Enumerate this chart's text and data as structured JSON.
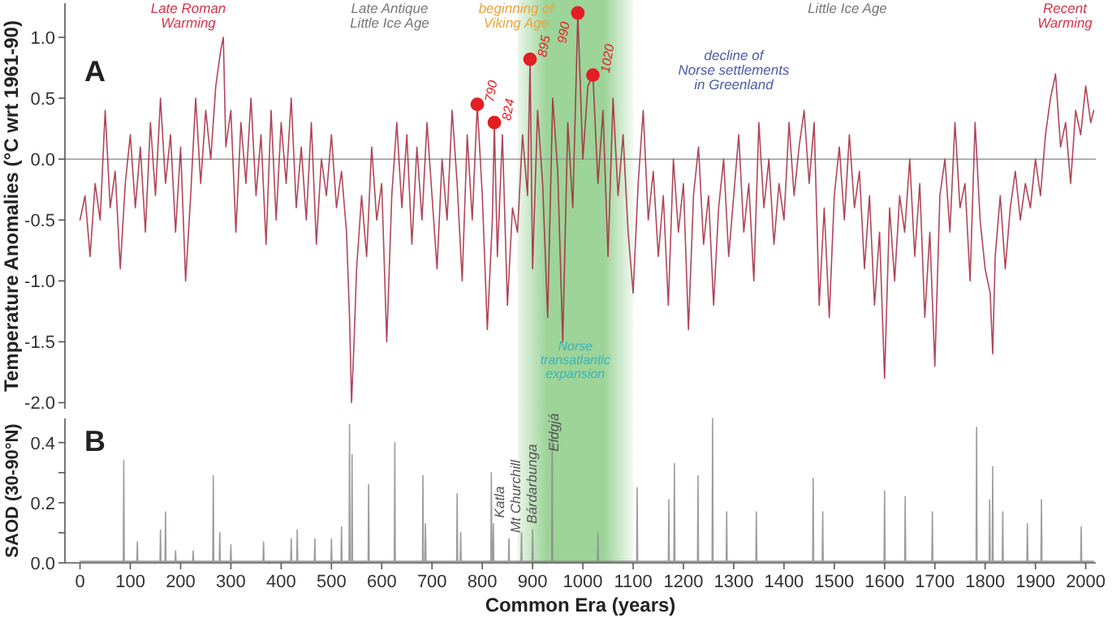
{
  "chart_data": [
    {
      "type": "line",
      "ylabel": "Temperature Anomalies (°C wrt 1961-90)",
      "xlim": [
        -30,
        2020
      ],
      "ylim": [
        -2.05,
        1.28
      ],
      "tick_labels": "y",
      "grid": false,
      "marker": "none",
      "line_style": "solid",
      "yticks": [
        {
          "value": 1,
          "label": "1.0"
        },
        0.5,
        {
          "value": 0,
          "label": "0.0"
        },
        -0.5,
        {
          "value": -1,
          "label": "-1.0"
        },
        -1.5,
        {
          "value": -2,
          "label": "-2.0"
        }
      ],
      "ref_lines": [
        {
          "axis": "y",
          "value": 0,
          "color": "#999999"
        }
      ],
      "bands": [
        {
          "axis": "x",
          "from": 870,
          "to": 1100,
          "label": "Norse\ntransatlantic\nexpansion",
          "color": "#7cc576"
        }
      ],
      "annotations": [
        "A",
        "Late Roman\nWarming",
        "Late Antique\nLittle Ice Age",
        "beginning of\nViking Age",
        "Little Ice Age",
        "Recent\nWarming",
        "decline of\nNorse settlements\nin Greenland",
        {
          "text": "790",
          "x": 790,
          "y": 0.45
        },
        {
          "text": "824",
          "x": 824,
          "y": 0.3
        },
        {
          "text": "895",
          "x": 895,
          "y": 0.82
        },
        {
          "text": "990",
          "x": 990,
          "y": 1.2
        },
        {
          "text": "1020",
          "x": 1020,
          "y": 0.69
        }
      ],
      "series": [
        {
          "color": "#a3263b",
          "x": [
            0,
            10,
            20,
            30,
            40,
            50,
            60,
            70,
            80,
            90,
            100,
            110,
            120,
            130,
            140,
            150,
            160,
            170,
            180,
            190,
            200,
            210,
            220,
            230,
            240,
            250,
            260,
            270,
            280,
            285,
            290,
            300,
            310,
            320,
            330,
            340,
            350,
            360,
            370,
            380,
            390,
            400,
            410,
            420,
            430,
            440,
            450,
            460,
            470,
            480,
            490,
            500,
            510,
            520,
            530,
            536,
            540,
            545,
            550,
            560,
            570,
            580,
            590,
            600,
            610,
            620,
            630,
            640,
            650,
            660,
            670,
            680,
            690,
            700,
            710,
            720,
            730,
            740,
            750,
            760,
            770,
            780,
            790,
            800,
            810,
            820,
            824,
            830,
            840,
            850,
            860,
            870,
            880,
            890,
            895,
            900,
            910,
            920,
            930,
            940,
            950,
            960,
            970,
            980,
            990,
            1000,
            1010,
            1020,
            1030,
            1040,
            1050,
            1060,
            1070,
            1080,
            1090,
            1100,
            1110,
            1120,
            1130,
            1140,
            1150,
            1160,
            1170,
            1180,
            1190,
            1200,
            1210,
            1220,
            1230,
            1240,
            1250,
            1260,
            1270,
            1280,
            1290,
            1300,
            1310,
            1320,
            1330,
            1340,
            1350,
            1360,
            1370,
            1380,
            1390,
            1400,
            1410,
            1420,
            1430,
            1440,
            1450,
            1460,
            1470,
            1480,
            1490,
            1500,
            1510,
            1520,
            1530,
            1540,
            1550,
            1560,
            1570,
            1580,
            1590,
            1600,
            1610,
            1620,
            1630,
            1640,
            1650,
            1660,
            1670,
            1680,
            1690,
            1700,
            1710,
            1720,
            1730,
            1740,
            1750,
            1760,
            1770,
            1780,
            1790,
            1800,
            1810,
            1815,
            1820,
            1830,
            1840,
            1850,
            1860,
            1870,
            1880,
            1890,
            1900,
            1910,
            1920,
            1930,
            1940,
            1950,
            1960,
            1970,
            1980,
            1990,
            2000,
            2010,
            2016
          ],
          "values": [
            -0.5,
            -0.3,
            -0.8,
            -0.2,
            -0.5,
            0.4,
            -0.4,
            -0.1,
            -0.9,
            -0.2,
            0.2,
            -0.4,
            0.1,
            -0.6,
            0.3,
            -0.3,
            0.5,
            -0.2,
            0.2,
            -0.6,
            0.1,
            -1.0,
            -0.3,
            0.5,
            -0.2,
            0.4,
            0.0,
            0.6,
            0.9,
            1.0,
            0.1,
            0.4,
            -0.6,
            0.3,
            -0.2,
            0.5,
            -0.3,
            0.2,
            -0.7,
            0.4,
            -0.5,
            0.3,
            -0.2,
            0.5,
            -0.4,
            0.1,
            -0.5,
            0.3,
            -0.7,
            0.0,
            -0.3,
            0.2,
            -0.4,
            -0.1,
            -0.6,
            -1.3,
            -2.0,
            -1.5,
            -0.9,
            -0.3,
            -0.8,
            0.1,
            -0.5,
            -0.2,
            -1.5,
            -0.3,
            0.3,
            -0.4,
            0.2,
            -0.7,
            0.1,
            -0.5,
            0.3,
            -0.3,
            -0.9,
            0.0,
            -0.5,
            0.4,
            -0.2,
            -1.0,
            0.2,
            -0.5,
            0.45,
            -0.3,
            -1.4,
            -0.5,
            0.3,
            -0.8,
            0.2,
            -1.2,
            -0.4,
            -0.6,
            0.2,
            -0.3,
            0.82,
            -0.9,
            0.4,
            -0.2,
            -1.3,
            0.5,
            -0.1,
            -1.5,
            0.3,
            -0.4,
            1.2,
            0.0,
            0.6,
            0.69,
            -0.2,
            0.4,
            -0.8,
            0.5,
            -0.3,
            0.2,
            -0.6,
            -1.1,
            -0.2,
            0.4,
            -0.5,
            -0.1,
            -0.8,
            -0.3,
            -1.2,
            0.0,
            -0.6,
            -0.2,
            -1.4,
            -0.3,
            0.1,
            -0.7,
            -0.3,
            -1.2,
            -0.4,
            0.0,
            -0.8,
            -0.3,
            0.2,
            -0.6,
            -0.2,
            -1.0,
            0.3,
            -0.4,
            0.0,
            -0.7,
            -0.2,
            -0.5,
            0.3,
            -0.3,
            0.1,
            0.4,
            -0.2,
            0.3,
            -1.2,
            -0.4,
            -1.3,
            -0.3,
            0.1,
            -0.5,
            0.2,
            -0.4,
            -0.1,
            -0.9,
            -0.3,
            -1.2,
            -0.6,
            -1.8,
            -0.4,
            -1.0,
            -0.3,
            -0.6,
            0.0,
            -0.8,
            -0.2,
            -1.3,
            -0.6,
            -1.7,
            -0.3,
            0.0,
            -0.6,
            0.3,
            -0.4,
            -0.2,
            -1.0,
            0.3,
            -0.5,
            -0.9,
            -1.1,
            -1.6,
            -0.8,
            -0.3,
            -0.9,
            -0.4,
            -0.1,
            -0.5,
            -0.2,
            -0.4,
            0.0,
            -0.3,
            0.2,
            0.5,
            0.7,
            0.1,
            0.3,
            -0.2,
            0.4,
            0.2,
            0.6,
            0.3,
            0.4
          ]
        },
        {
          "type": "scatter",
          "color": "#e31e24",
          "marker": "circle",
          "x": [
            790,
            824,
            895,
            990,
            1020
          ],
          "values": [
            0.45,
            0.3,
            0.82,
            1.2,
            0.69
          ]
        }
      ]
    },
    {
      "type": "line",
      "xlabel": "Common Era (years)",
      "ylabel": "SAOD (30-90°N)",
      "xlim": [
        -30,
        2020
      ],
      "ylim": [
        0,
        0.48
      ],
      "grid": false,
      "marker": "none",
      "line_style": "solid",
      "xticks": [
        0,
        100,
        200,
        300,
        400,
        500,
        600,
        700,
        800,
        900,
        1000,
        1100,
        1200,
        1300,
        1400,
        1500,
        1600,
        1700,
        1800,
        1900,
        2000
      ],
      "yticks": [
        {
          "value": 0,
          "label": "0.0"
        },
        {
          "value": 0.1,
          "label": null
        },
        {
          "value": 0.2,
          "label": "0.2"
        },
        {
          "value": 0.3,
          "label": null
        },
        {
          "value": 0.4,
          "label": "0.4"
        }
      ],
      "bands": [
        {
          "axis": "x",
          "from": 870,
          "to": 1100,
          "color": "#7cc576"
        }
      ],
      "annotations": [
        "B",
        {
          "text": "Katla",
          "x": 831,
          "y": 0.15
        },
        {
          "text": "Mt Churchill",
          "x": 862,
          "y": 0.1
        },
        {
          "text": "Bárdarbunga",
          "x": 895,
          "y": 0.13
        },
        {
          "text": "Eldgjá",
          "x": 939,
          "y": 0.37
        }
      ],
      "series": [
        {
          "color": "#8c8c8c",
          "x": [
            0,
            86,
            87,
            88,
            113,
            114,
            115,
            159,
            160,
            161,
            169,
            170,
            171,
            189,
            190,
            191,
            224,
            225,
            226,
            264,
            265,
            266,
            277,
            278,
            279,
            299,
            300,
            301,
            364,
            365,
            366,
            419,
            420,
            421,
            431,
            432,
            433,
            466,
            467,
            468,
            499,
            500,
            501,
            519,
            520,
            521,
            535,
            536,
            537,
            540,
            541,
            542,
            573,
            574,
            575,
            625,
            626,
            627,
            681,
            682,
            683,
            686,
            687,
            688,
            749,
            750,
            751,
            756,
            757,
            758,
            817,
            818,
            819,
            821,
            822,
            823,
            852,
            853,
            854,
            877,
            878,
            879,
            899,
            900,
            901,
            938,
            939,
            940,
            1029,
            1030,
            1031,
            1107,
            1108,
            1109,
            1170,
            1171,
            1172,
            1181,
            1182,
            1183,
            1228,
            1229,
            1230,
            1257,
            1258,
            1259,
            1285,
            1286,
            1287,
            1344,
            1345,
            1346,
            1457,
            1458,
            1459,
            1476,
            1477,
            1478,
            1599,
            1600,
            1601,
            1640,
            1641,
            1642,
            1694,
            1695,
            1696,
            1782,
            1783,
            1784,
            1808,
            1809,
            1810,
            1814,
            1815,
            1816,
            1834,
            1835,
            1836,
            1883,
            1884,
            1885,
            1911,
            1912,
            1913,
            1990,
            1991,
            1992,
            2016
          ],
          "values": [
            0.005,
            0.005,
            0.34,
            0.005,
            0.005,
            0.07,
            0.005,
            0.005,
            0.11,
            0.005,
            0.005,
            0.17,
            0.005,
            0.005,
            0.04,
            0.005,
            0.005,
            0.04,
            0.005,
            0.005,
            0.29,
            0.005,
            0.005,
            0.1,
            0.005,
            0.005,
            0.06,
            0.005,
            0.005,
            0.07,
            0.005,
            0.005,
            0.08,
            0.005,
            0.005,
            0.11,
            0.005,
            0.005,
            0.08,
            0.005,
            0.005,
            0.08,
            0.005,
            0.005,
            0.12,
            0.005,
            0.005,
            0.46,
            0.005,
            0.005,
            0.36,
            0.005,
            0.005,
            0.26,
            0.005,
            0.005,
            0.4,
            0.005,
            0.005,
            0.29,
            0.005,
            0.005,
            0.13,
            0.005,
            0.005,
            0.23,
            0.005,
            0.005,
            0.1,
            0.005,
            0.005,
            0.3,
            0.005,
            0.005,
            0.13,
            0.005,
            0.005,
            0.08,
            0.005,
            0.005,
            0.1,
            0.005,
            0.005,
            0.11,
            0.005,
            0.005,
            0.44,
            0.005,
            0.005,
            0.1,
            0.005,
            0.005,
            0.25,
            0.005,
            0.005,
            0.21,
            0.005,
            0.005,
            0.33,
            0.005,
            0.005,
            0.29,
            0.005,
            0.005,
            0.48,
            0.005,
            0.005,
            0.17,
            0.005,
            0.005,
            0.17,
            0.005,
            0.005,
            0.28,
            0.005,
            0.005,
            0.17,
            0.005,
            0.005,
            0.24,
            0.005,
            0.005,
            0.22,
            0.005,
            0.005,
            0.17,
            0.005,
            0.005,
            0.45,
            0.005,
            0.005,
            0.21,
            0.005,
            0.005,
            0.32,
            0.005,
            0.005,
            0.17,
            0.005,
            0.005,
            0.13,
            0.005,
            0.005,
            0.21,
            0.005,
            0.005,
            0.12,
            0.005,
            0.005
          ]
        }
      ]
    }
  ]
}
